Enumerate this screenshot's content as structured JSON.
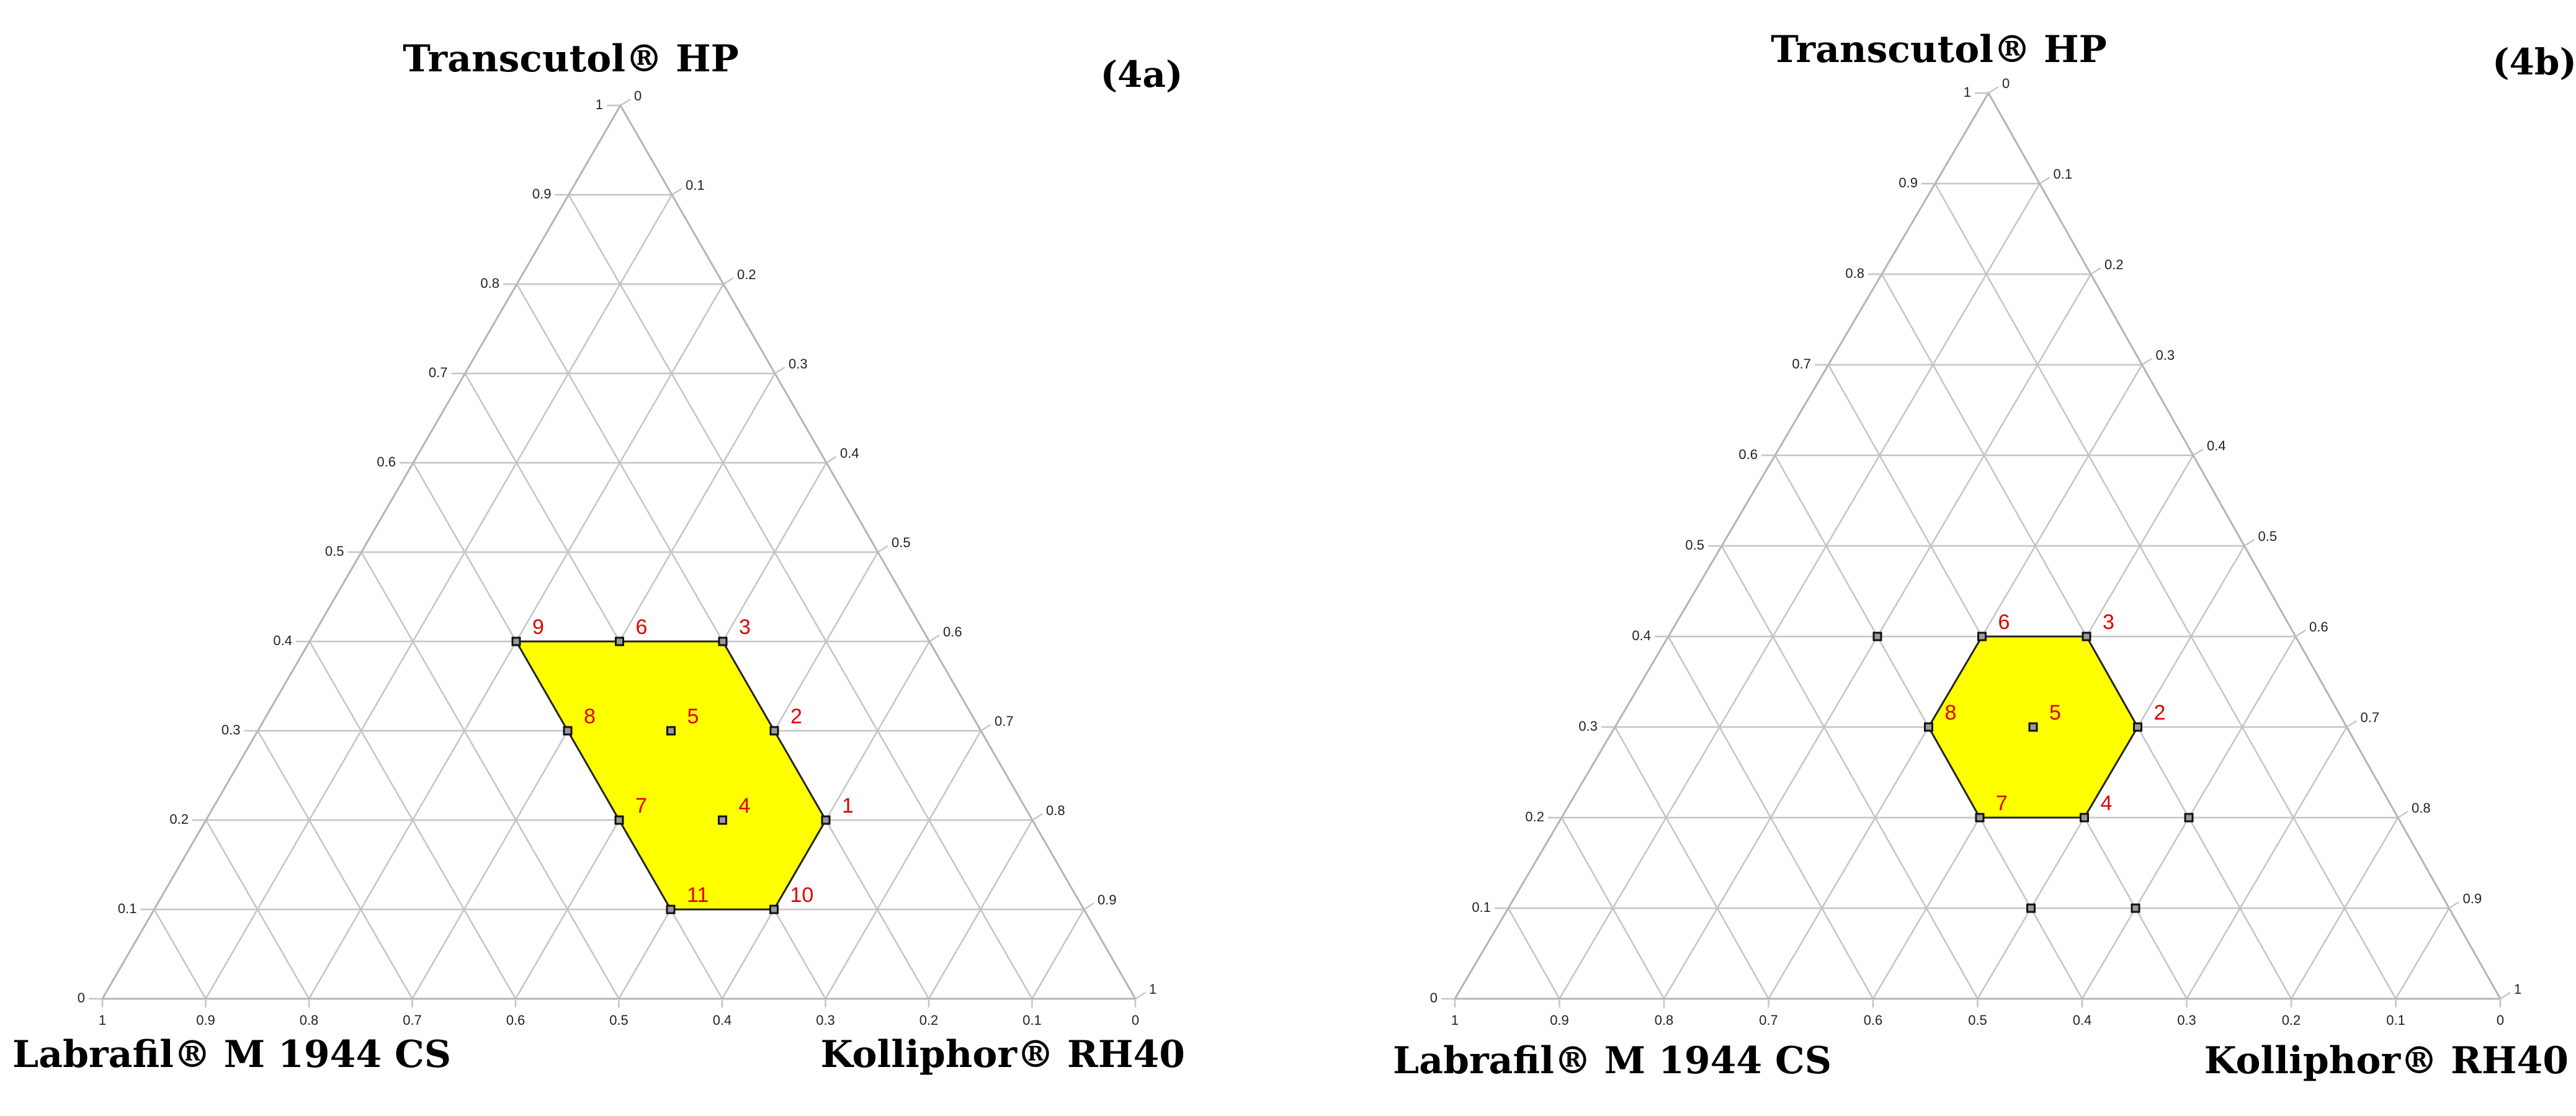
{
  "colors": {
    "region": "#ffff00",
    "point_label": "#e00000",
    "grid": "#c4c4c4"
  },
  "chart_data": [
    {
      "type": "ternary",
      "panel_label": "(4a)",
      "top_label": "Transcutol® HP",
      "left_label": "Labrafil® M 1944 CS",
      "right_label": "Kolliphor® RH40",
      "ticks": {
        "left_edge": [
          "0",
          "0.1",
          "0.2",
          "0.3",
          "0.4",
          "0.5",
          "0.6",
          "0.7",
          "0.8",
          "0.9",
          "1"
        ],
        "right_edge": [
          "0",
          "0.1",
          "0.2",
          "0.3",
          "0.4",
          "0.5",
          "0.6",
          "0.7",
          "0.8",
          "0.9",
          "1"
        ],
        "bottom_edge": [
          "1",
          "0.9",
          "0.8",
          "0.7",
          "0.6",
          "0.5",
          "0.4",
          "0.3",
          "0.2",
          "0.1",
          "0"
        ]
      },
      "grid_step": 0.1,
      "region_vertices": [
        "9",
        "3",
        "1",
        "10",
        "11"
      ],
      "points": [
        {
          "label": "1",
          "transcutol": 0.2,
          "kolliphor": 0.6,
          "labrafil": 0.2
        },
        {
          "label": "2",
          "transcutol": 0.3,
          "kolliphor": 0.5,
          "labrafil": 0.2
        },
        {
          "label": "3",
          "transcutol": 0.4,
          "kolliphor": 0.4,
          "labrafil": 0.2
        },
        {
          "label": "4",
          "transcutol": 0.2,
          "kolliphor": 0.5,
          "labrafil": 0.3
        },
        {
          "label": "5",
          "transcutol": 0.3,
          "kolliphor": 0.4,
          "labrafil": 0.3
        },
        {
          "label": "6",
          "transcutol": 0.4,
          "kolliphor": 0.3,
          "labrafil": 0.3
        },
        {
          "label": "7",
          "transcutol": 0.2,
          "kolliphor": 0.4,
          "labrafil": 0.4
        },
        {
          "label": "8",
          "transcutol": 0.3,
          "kolliphor": 0.3,
          "labrafil": 0.4
        },
        {
          "label": "9",
          "transcutol": 0.4,
          "kolliphor": 0.2,
          "labrafil": 0.4
        },
        {
          "label": "10",
          "transcutol": 0.1,
          "kolliphor": 0.6,
          "labrafil": 0.3
        },
        {
          "label": "11",
          "transcutol": 0.1,
          "kolliphor": 0.5,
          "labrafil": 0.4
        }
      ],
      "extra_points": []
    },
    {
      "type": "ternary",
      "panel_label": "(4b)",
      "top_label": "Transcutol® HP",
      "left_label": "Labrafil® M 1944 CS",
      "right_label": "Kolliphor® RH40",
      "ticks": {
        "left_edge": [
          "0",
          "0.1",
          "0.2",
          "0.3",
          "0.4",
          "0.5",
          "0.6",
          "0.7",
          "0.8",
          "0.9",
          "1"
        ],
        "right_edge": [
          "0",
          "0.1",
          "0.2",
          "0.3",
          "0.4",
          "0.5",
          "0.6",
          "0.7",
          "0.8",
          "0.9",
          "1"
        ],
        "bottom_edge": [
          "1",
          "0.9",
          "0.8",
          "0.7",
          "0.6",
          "0.5",
          "0.4",
          "0.3",
          "0.2",
          "0.1",
          "0"
        ]
      },
      "grid_step": 0.1,
      "region_vertices": [
        "6",
        "3",
        "2",
        "4",
        "7",
        "8"
      ],
      "points": [
        {
          "label": "2",
          "transcutol": 0.3,
          "kolliphor": 0.5,
          "labrafil": 0.2
        },
        {
          "label": "3",
          "transcutol": 0.4,
          "kolliphor": 0.4,
          "labrafil": 0.2
        },
        {
          "label": "4",
          "transcutol": 0.2,
          "kolliphor": 0.5,
          "labrafil": 0.3
        },
        {
          "label": "5",
          "transcutol": 0.3,
          "kolliphor": 0.4,
          "labrafil": 0.3
        },
        {
          "label": "6",
          "transcutol": 0.4,
          "kolliphor": 0.3,
          "labrafil": 0.3
        },
        {
          "label": "7",
          "transcutol": 0.2,
          "kolliphor": 0.4,
          "labrafil": 0.4
        },
        {
          "label": "8",
          "transcutol": 0.3,
          "kolliphor": 0.3,
          "labrafil": 0.4
        }
      ],
      "extra_points": [
        {
          "transcutol": 0.4,
          "kolliphor": 0.2,
          "labrafil": 0.4
        },
        {
          "transcutol": 0.2,
          "kolliphor": 0.6,
          "labrafil": 0.2
        },
        {
          "transcutol": 0.1,
          "kolliphor": 0.5,
          "labrafil": 0.4
        },
        {
          "transcutol": 0.1,
          "kolliphor": 0.6,
          "labrafil": 0.3
        }
      ]
    }
  ]
}
